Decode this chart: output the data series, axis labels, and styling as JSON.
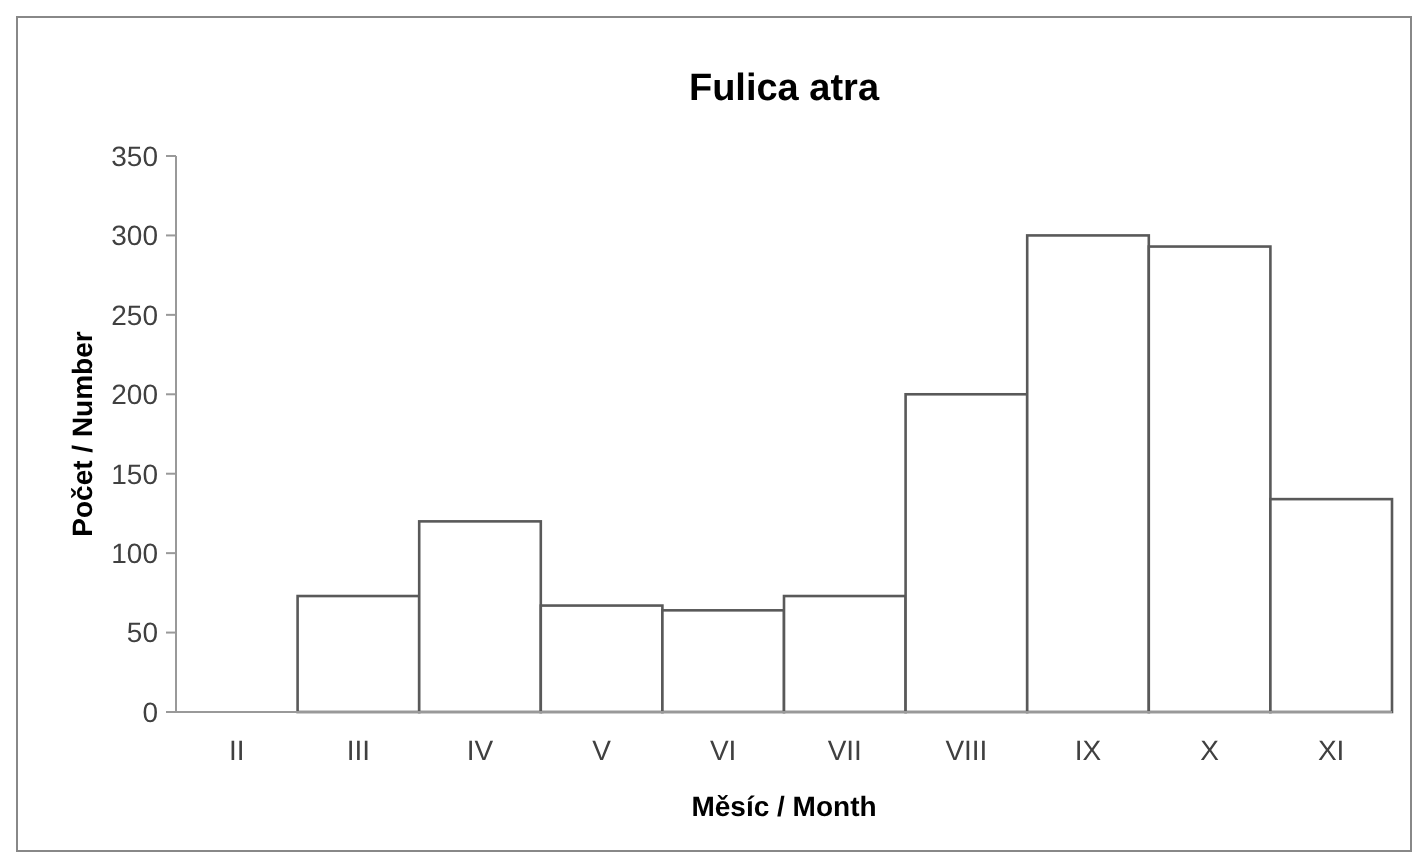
{
  "chart_data": {
    "type": "bar",
    "title": "Fulica atra",
    "xlabel": "Měsíc / Month",
    "ylabel": "Počet / Number",
    "categories": [
      "II",
      "III",
      "IV",
      "V",
      "VI",
      "VII",
      "VIII",
      "IX",
      "X",
      "XI"
    ],
    "values": [
      0,
      73,
      120,
      67,
      64,
      73,
      200,
      300,
      293,
      134
    ],
    "color": "#ffffff",
    "ylim": [
      0,
      350
    ],
    "yticks": [
      0,
      50,
      100,
      150,
      200,
      250,
      300,
      350
    ],
    "grid": false
  }
}
